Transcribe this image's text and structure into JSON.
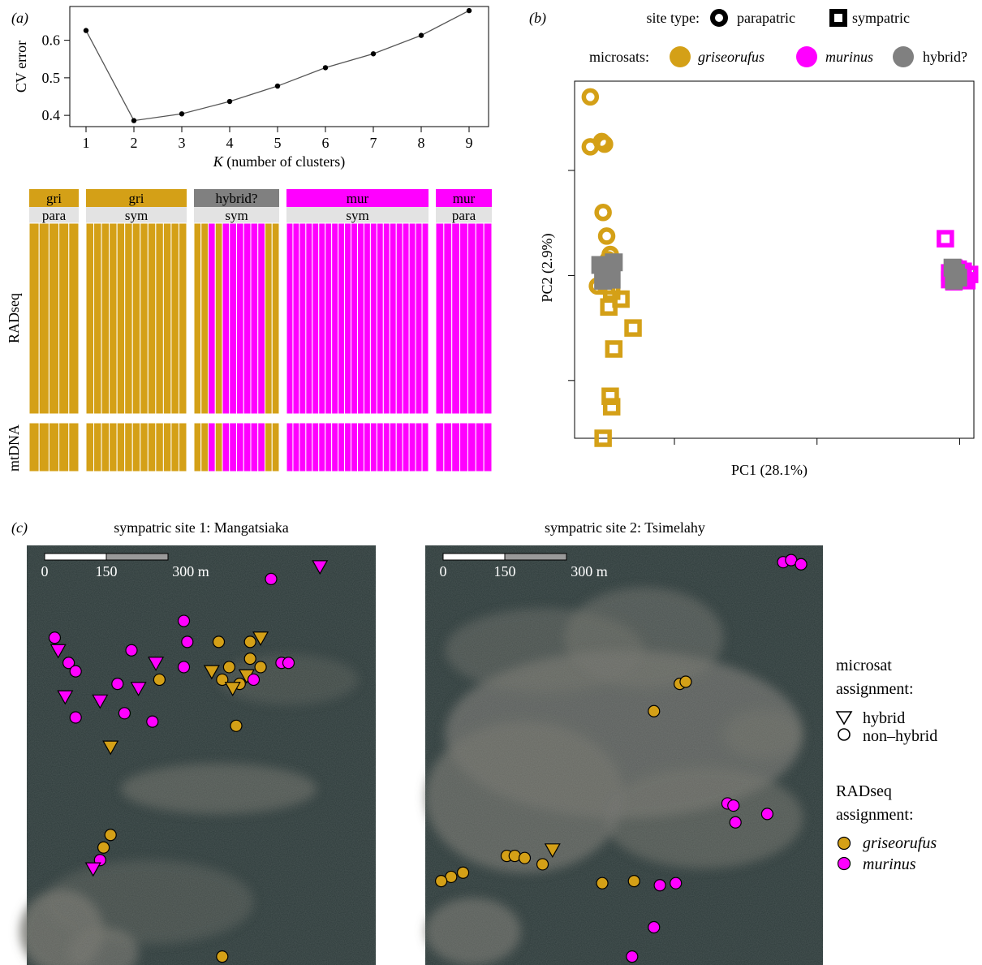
{
  "figure": {
    "panel_labels": [
      "(a)",
      "(b)",
      "(c)"
    ],
    "colors": {
      "griseorufus": "#D4A017",
      "murinus": "#FF00FF",
      "hybrid": "#808080",
      "map_bg": "#2D3A3A",
      "map_light": "#6E6E68",
      "strip_bg": "#E3E3E3"
    }
  },
  "chart_data": [
    {
      "id": "cv-error",
      "type": "line",
      "xlabel_italic": "K",
      "xlabel_rest": " (number of clusters)",
      "ylabel": "CV error",
      "x": [
        1,
        2,
        3,
        4,
        5,
        6,
        7,
        8,
        9
      ],
      "y": [
        0.626,
        0.386,
        0.404,
        0.437,
        0.478,
        0.527,
        0.564,
        0.613,
        0.679
      ],
      "xlim": [
        1,
        9
      ],
      "ylim": [
        0.37,
        0.69
      ],
      "yticks": [
        0.4,
        0.5,
        0.6
      ],
      "ytick_labels": [
        "0.4",
        "0.5",
        "0.6"
      ],
      "xtick_labels": [
        "1",
        "2",
        "3",
        "4",
        "5",
        "6",
        "7",
        "8",
        "9"
      ]
    },
    {
      "id": "admixture",
      "type": "bar",
      "row_labels": [
        "RADseq",
        "mtDNA"
      ],
      "groups": [
        {
          "species": "gri",
          "site": "para",
          "color": "griseorufus",
          "rad": [
            "g",
            "g",
            "g",
            "g",
            "g"
          ],
          "mt": [
            "g",
            "g",
            "g",
            "g",
            "g"
          ]
        },
        {
          "species": "gri",
          "site": "sym",
          "color": "griseorufus",
          "rad": [
            "g",
            "g",
            "g",
            "g",
            "g",
            "g",
            "g",
            "g",
            "g",
            "g",
            "g",
            "g",
            "g"
          ],
          "mt": [
            "g",
            "g",
            "g",
            "g",
            "g",
            "g",
            "g",
            "g",
            "g",
            "g",
            "g",
            "g",
            "g"
          ]
        },
        {
          "species": "hybrid?",
          "site": "sym",
          "color": "hybrid",
          "rad": [
            "g",
            "g",
            "m",
            "g",
            "m",
            "m",
            "m",
            "m",
            "m",
            "m",
            "g",
            "g"
          ],
          "mt": [
            "g",
            "g",
            "m",
            "g",
            "m",
            "m",
            "m",
            "m",
            "m",
            "m",
            "g",
            "g"
          ]
        },
        {
          "species": "mur",
          "site": "sym",
          "color": "murinus",
          "rad": [
            "m",
            "m",
            "m",
            "m",
            "m",
            "m",
            "m",
            "m",
            "m",
            "m",
            "m",
            "m",
            "m",
            "m",
            "m",
            "m",
            "m",
            "m",
            "m",
            "m",
            "m",
            "m"
          ],
          "mt": [
            "m",
            "m",
            "m",
            "m",
            "m",
            "m",
            "m",
            "m",
            "m",
            "m",
            "m",
            "m",
            "m",
            "m",
            "m",
            "m",
            "m",
            "m",
            "m",
            "m",
            "m",
            "m"
          ]
        },
        {
          "species": "mur",
          "site": "para",
          "color": "murinus",
          "rad": [
            "m",
            "m",
            "m",
            "m",
            "m",
            "m",
            "m"
          ],
          "mt": [
            "m",
            "m",
            "m",
            "m",
            "m",
            "m",
            "m"
          ]
        }
      ]
    },
    {
      "id": "pca",
      "type": "scatter",
      "xlabel": "PC1 (28.1%)",
      "ylabel": "PC2 (2.9%)",
      "xlim": [
        -0.14,
        0.42
      ],
      "ylim": [
        -0.31,
        0.37
      ],
      "xticks": [
        0,
        0.2,
        0.4
      ],
      "yticks": [
        -0.2,
        0,
        0.2
      ],
      "legend": {
        "site_label": "site type:",
        "site_entries": [
          "parapatric",
          "sympatric"
        ],
        "microsat_label": "microsats:",
        "microsat_entries": [
          "griseorufus",
          "murinus",
          "hybrid?"
        ]
      },
      "series": [
        {
          "name": "griseorufus",
          "site": "parapatric",
          "color": "griseorufus",
          "points": [
            [
              -0.118,
              0.34
            ],
            [
              -0.118,
              0.245
            ],
            [
              -0.102,
              0.255
            ],
            [
              -0.098,
              0.25
            ],
            [
              -0.1,
              0.12
            ],
            [
              -0.095,
              0.075
            ],
            [
              -0.09,
              0.04
            ],
            [
              -0.093,
              0.03
            ],
            [
              -0.108,
              -0.02
            ]
          ]
        },
        {
          "name": "griseorufus",
          "site": "sympatric",
          "color": "griseorufus",
          "points": [
            [
              -0.1,
              0.002
            ],
            [
              -0.095,
              -0.02
            ],
            [
              -0.088,
              -0.03
            ],
            [
              -0.092,
              -0.06
            ],
            [
              -0.075,
              -0.045
            ],
            [
              -0.058,
              -0.1
            ],
            [
              -0.085,
              -0.14
            ],
            [
              -0.09,
              -0.23
            ],
            [
              -0.088,
              -0.25
            ],
            [
              -0.1,
              -0.31
            ]
          ]
        },
        {
          "name": "murinus",
          "site": "parapatric",
          "color": "murinus",
          "points": [
            [
              0.39,
              0.0
            ],
            [
              0.396,
              -0.01
            ],
            [
              0.402,
              0.004
            ],
            [
              0.408,
              -0.006
            ]
          ]
        },
        {
          "name": "murinus",
          "site": "sympatric",
          "color": "murinus",
          "points": [
            [
              0.38,
              0.07
            ],
            [
              0.386,
              0.005
            ],
            [
              0.392,
              -0.012
            ],
            [
              0.398,
              0.012
            ],
            [
              0.404,
              -0.004
            ],
            [
              0.41,
              -0.01
            ],
            [
              0.414,
              0.002
            ],
            [
              0.386,
              -0.008
            ],
            [
              0.405,
              0.008
            ],
            [
              0.392,
              0.014
            ]
          ]
        },
        {
          "name": "hybrid?",
          "site": "sympatric",
          "color": "hybrid",
          "points": [
            [
              -0.104,
              0.02
            ],
            [
              -0.095,
              0.008
            ],
            [
              -0.09,
              0.018
            ],
            [
              -0.088,
              -0.008
            ],
            [
              -0.1,
              -0.01
            ],
            [
              -0.085,
              0.025
            ],
            [
              0.39,
              0.015
            ],
            [
              0.395,
              0.005
            ],
            [
              0.398,
              -0.004
            ],
            [
              0.392,
              -0.01
            ]
          ]
        }
      ]
    },
    {
      "id": "map-site1",
      "type": "scatter",
      "title": "sympatric site 1: Mangatsiaka",
      "scalebar": [
        "0",
        "150",
        "300 m"
      ],
      "xlim": [
        0,
        100
      ],
      "ylim": [
        0,
        100
      ],
      "points": [
        {
          "x": 84,
          "y": 95,
          "sp": "murinus",
          "m": "hybrid"
        },
        {
          "x": 70,
          "y": 92,
          "sp": "murinus",
          "m": "non-hybrid"
        },
        {
          "x": 45,
          "y": 82,
          "sp": "murinus",
          "m": "non-hybrid"
        },
        {
          "x": 8,
          "y": 78,
          "sp": "murinus",
          "m": "non-hybrid"
        },
        {
          "x": 9,
          "y": 75,
          "sp": "murinus",
          "m": "hybrid"
        },
        {
          "x": 30,
          "y": 75,
          "sp": "murinus",
          "m": "non-hybrid"
        },
        {
          "x": 46,
          "y": 77,
          "sp": "murinus",
          "m": "non-hybrid"
        },
        {
          "x": 37,
          "y": 72,
          "sp": "murinus",
          "m": "hybrid"
        },
        {
          "x": 55,
          "y": 77,
          "sp": "griseorufus",
          "m": "non-hybrid"
        },
        {
          "x": 64,
          "y": 77,
          "sp": "griseorufus",
          "m": "non-hybrid"
        },
        {
          "x": 67,
          "y": 78,
          "sp": "griseorufus",
          "m": "hybrid"
        },
        {
          "x": 12,
          "y": 72,
          "sp": "murinus",
          "m": "non-hybrid"
        },
        {
          "x": 14,
          "y": 70,
          "sp": "murinus",
          "m": "non-hybrid"
        },
        {
          "x": 45,
          "y": 71,
          "sp": "murinus",
          "m": "non-hybrid"
        },
        {
          "x": 53,
          "y": 70,
          "sp": "griseorufus",
          "m": "hybrid"
        },
        {
          "x": 58,
          "y": 71,
          "sp": "griseorufus",
          "m": "non-hybrid"
        },
        {
          "x": 64,
          "y": 73,
          "sp": "griseorufus",
          "m": "non-hybrid"
        },
        {
          "x": 67,
          "y": 71,
          "sp": "griseorufus",
          "m": "non-hybrid"
        },
        {
          "x": 73,
          "y": 72,
          "sp": "murinus",
          "m": "non-hybrid"
        },
        {
          "x": 75,
          "y": 72,
          "sp": "murinus",
          "m": "non-hybrid"
        },
        {
          "x": 38,
          "y": 68,
          "sp": "griseorufus",
          "m": "non-hybrid"
        },
        {
          "x": 56,
          "y": 68,
          "sp": "griseorufus",
          "m": "non-hybrid"
        },
        {
          "x": 61,
          "y": 67,
          "sp": "griseorufus",
          "m": "non-hybrid"
        },
        {
          "x": 63,
          "y": 69,
          "sp": "griseorufus",
          "m": "hybrid"
        },
        {
          "x": 59,
          "y": 66,
          "sp": "griseorufus",
          "m": "hybrid"
        },
        {
          "x": 65,
          "y": 68,
          "sp": "murinus",
          "m": "non-hybrid"
        },
        {
          "x": 32,
          "y": 66,
          "sp": "murinus",
          "m": "hybrid"
        },
        {
          "x": 26,
          "y": 67,
          "sp": "murinus",
          "m": "non-hybrid"
        },
        {
          "x": 11,
          "y": 64,
          "sp": "murinus",
          "m": "hybrid"
        },
        {
          "x": 21,
          "y": 63,
          "sp": "murinus",
          "m": "hybrid"
        },
        {
          "x": 28,
          "y": 60,
          "sp": "murinus",
          "m": "non-hybrid"
        },
        {
          "x": 36,
          "y": 58,
          "sp": "murinus",
          "m": "non-hybrid"
        },
        {
          "x": 14,
          "y": 59,
          "sp": "murinus",
          "m": "non-hybrid"
        },
        {
          "x": 60,
          "y": 57,
          "sp": "griseorufus",
          "m": "non-hybrid"
        },
        {
          "x": 24,
          "y": 52,
          "sp": "griseorufus",
          "m": "hybrid"
        },
        {
          "x": 24,
          "y": 31,
          "sp": "griseorufus",
          "m": "non-hybrid"
        },
        {
          "x": 22,
          "y": 28,
          "sp": "griseorufus",
          "m": "non-hybrid"
        },
        {
          "x": 21,
          "y": 25,
          "sp": "murinus",
          "m": "non-hybrid"
        },
        {
          "x": 19,
          "y": 23,
          "sp": "murinus",
          "m": "hybrid"
        },
        {
          "x": 56,
          "y": 2,
          "sp": "griseorufus",
          "m": "non-hybrid"
        }
      ]
    },
    {
      "id": "map-site2",
      "type": "scatter",
      "title": "sympatric site 2: Tsimelahy",
      "scalebar": [
        "0",
        "150",
        "300 m"
      ],
      "xlim": [
        0,
        100
      ],
      "ylim": [
        0,
        100
      ],
      "points": [
        {
          "x": 90,
          "y": 96,
          "sp": "murinus",
          "m": "non-hybrid"
        },
        {
          "x": 92,
          "y": 96.5,
          "sp": "murinus",
          "m": "non-hybrid"
        },
        {
          "x": 94.5,
          "y": 95.5,
          "sp": "murinus",
          "m": "non-hybrid"
        },
        {
          "x": 64,
          "y": 67,
          "sp": "griseorufus",
          "m": "non-hybrid"
        },
        {
          "x": 65.5,
          "y": 67.5,
          "sp": "griseorufus",
          "m": "non-hybrid"
        },
        {
          "x": 57.5,
          "y": 60.5,
          "sp": "griseorufus",
          "m": "non-hybrid"
        },
        {
          "x": 76,
          "y": 38.5,
          "sp": "murinus",
          "m": "non-hybrid"
        },
        {
          "x": 77.5,
          "y": 38,
          "sp": "murinus",
          "m": "non-hybrid"
        },
        {
          "x": 86,
          "y": 36,
          "sp": "murinus",
          "m": "non-hybrid"
        },
        {
          "x": 78,
          "y": 34,
          "sp": "murinus",
          "m": "non-hybrid"
        },
        {
          "x": 32,
          "y": 27.5,
          "sp": "griseorufus",
          "m": "hybrid"
        },
        {
          "x": 20.5,
          "y": 26,
          "sp": "griseorufus",
          "m": "non-hybrid"
        },
        {
          "x": 22.5,
          "y": 26,
          "sp": "griseorufus",
          "m": "non-hybrid"
        },
        {
          "x": 25,
          "y": 25.5,
          "sp": "griseorufus",
          "m": "non-hybrid"
        },
        {
          "x": 29.5,
          "y": 24,
          "sp": "griseorufus",
          "m": "non-hybrid"
        },
        {
          "x": 9.5,
          "y": 22,
          "sp": "griseorufus",
          "m": "non-hybrid"
        },
        {
          "x": 6.5,
          "y": 21,
          "sp": "griseorufus",
          "m": "non-hybrid"
        },
        {
          "x": 4,
          "y": 20,
          "sp": "griseorufus",
          "m": "non-hybrid"
        },
        {
          "x": 44.5,
          "y": 19.5,
          "sp": "griseorufus",
          "m": "non-hybrid"
        },
        {
          "x": 52.5,
          "y": 20,
          "sp": "griseorufus",
          "m": "non-hybrid"
        },
        {
          "x": 59,
          "y": 19,
          "sp": "murinus",
          "m": "non-hybrid"
        },
        {
          "x": 63,
          "y": 19.5,
          "sp": "murinus",
          "m": "non-hybrid"
        },
        {
          "x": 57.5,
          "y": 9,
          "sp": "murinus",
          "m": "non-hybrid"
        },
        {
          "x": 52,
          "y": 2,
          "sp": "murinus",
          "m": "non-hybrid"
        }
      ]
    }
  ],
  "map_legend": {
    "microsat_title": [
      "microsat",
      "assignment:"
    ],
    "microsat_entries": [
      "hybrid",
      "non–hybrid"
    ],
    "radseq_title": [
      "RADseq",
      "assignment:"
    ],
    "radseq_entries": [
      "griseorufus",
      "murinus"
    ]
  }
}
